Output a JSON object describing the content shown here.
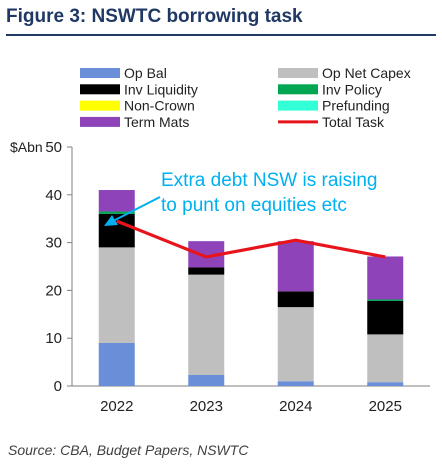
{
  "title": "Figure 3:  NSWTC borrowing task",
  "source": "Source:  CBA, Budget Papers, NSWTC",
  "annotation": {
    "line1": "Extra debt NSW is raising",
    "line2": "to punt on equities etc",
    "color": "#00b0f0"
  },
  "chart_data": {
    "type": "bar",
    "stacked": true,
    "ylabel": "$Abn",
    "ylim": [
      0,
      50
    ],
    "yticks": [
      0,
      10,
      20,
      30,
      40,
      50
    ],
    "categories": [
      "2022",
      "2023",
      "2024",
      "2025"
    ],
    "grid": false,
    "legend_position": "top",
    "series": [
      {
        "name": "Op Bal",
        "color": "#6a8fd8",
        "values": [
          9,
          2.3,
          1.0,
          0.8
        ]
      },
      {
        "name": "Op Net Capex",
        "color": "#bfbfbf",
        "values": [
          20,
          21,
          15.5,
          10
        ]
      },
      {
        "name": "Inv Liquidity",
        "color": "#000000",
        "values": [
          7,
          1.5,
          3.3,
          7
        ]
      },
      {
        "name": "Inv Policy",
        "color": "#00a651",
        "values": [
          0.5,
          0,
          0,
          0.3
        ]
      },
      {
        "name": "Non-Crown",
        "color": "#ffff00",
        "values": [
          0,
          0,
          0,
          0
        ]
      },
      {
        "name": "Prefunding",
        "color": "#33ffd6",
        "values": [
          0,
          0,
          0,
          0
        ]
      },
      {
        "name": "Term Mats",
        "color": "#8e44b8",
        "values": [
          4.5,
          5.5,
          10.5,
          9
        ]
      }
    ],
    "line": {
      "name": "Total Task",
      "color": "#e8141c",
      "values": [
        34.5,
        27,
        30.5,
        27
      ]
    }
  }
}
